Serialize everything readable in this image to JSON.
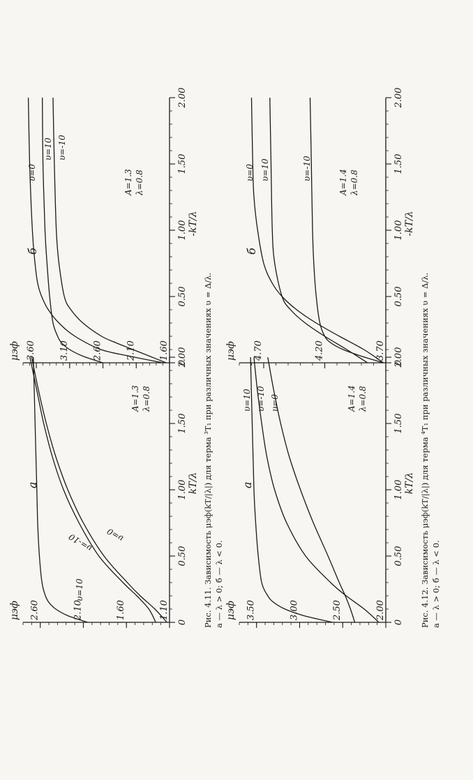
{
  "figures": [
    {
      "caption_line1": "Рис. 4.11. Зависимость μэф(kT/|λ|) для терма ³T₁ при различных значениях υ = Δ/λ.",
      "caption_line2": "а — λ > 0; б — λ < 0."
    },
    {
      "caption_line1": "Рис. 4.12. Зависимость μэф(kT/|λ|) для терма ⁴T₁ при различных значениях υ = Δ/λ.",
      "caption_line2": "а — λ > 0; б — λ < 0."
    }
  ],
  "chart_data": [
    {
      "id": "fig411a",
      "type": "line",
      "panel": "а",
      "ylabel": "μэф",
      "xlabel": "kT/λ",
      "xlim": [
        0,
        2.0
      ],
      "ylim": [
        1.1,
        2.8
      ],
      "xticks": [
        0,
        0.5,
        1.0,
        1.5,
        2.0
      ],
      "xtick_labels": [
        "0",
        "0.50",
        "1.00",
        "1.50",
        "2.00"
      ],
      "yticks": [
        1.1,
        1.6,
        2.1,
        2.6
      ],
      "ytick_labels": [
        "1.10",
        "1.60",
        "2.10",
        "2.60"
      ],
      "params": [
        "A=1.3",
        "λ=0.8"
      ],
      "series": [
        {
          "name": "υ=10",
          "x": [
            0,
            0.05,
            0.1,
            0.15,
            0.2,
            0.3,
            0.5,
            0.75,
            1.0,
            1.5,
            2.0
          ],
          "y": [
            2.05,
            2.28,
            2.42,
            2.5,
            2.54,
            2.58,
            2.61,
            2.63,
            2.64,
            2.66,
            2.68
          ]
        },
        {
          "name": "υ=-10",
          "x": [
            0,
            0.1,
            0.2,
            0.3,
            0.5,
            0.75,
            1.0,
            1.25,
            1.5,
            1.75,
            2.0
          ],
          "y": [
            1.26,
            1.34,
            1.48,
            1.64,
            1.92,
            2.15,
            2.33,
            2.46,
            2.56,
            2.64,
            2.72
          ]
        },
        {
          "name": "υ=0",
          "x": [
            0,
            0.1,
            0.2,
            0.3,
            0.5,
            0.75,
            1.0,
            1.25,
            1.5,
            1.75,
            2.0
          ],
          "y": [
            1.13,
            1.27,
            1.44,
            1.59,
            1.86,
            2.1,
            2.28,
            2.42,
            2.53,
            2.62,
            2.7
          ]
        }
      ]
    },
    {
      "id": "fig411b",
      "type": "line",
      "panel": "б",
      "ylabel": "μэф",
      "xlabel": "-kT/λ",
      "xlim": [
        0,
        2.0
      ],
      "ylim": [
        1.6,
        3.8
      ],
      "xticks": [
        0,
        0.5,
        1.0,
        1.5,
        2.0
      ],
      "xtick_labels": [
        "0",
        "0.50",
        "1.00",
        "1.50",
        "2.00"
      ],
      "yticks": [
        1.6,
        2.1,
        2.6,
        3.1,
        3.6
      ],
      "ytick_labels": [
        "1.60",
        "2.10",
        "2.60",
        "3.10",
        "3.60"
      ],
      "params": [
        "A=1.3",
        "λ=0.8"
      ],
      "series": [
        {
          "name": "υ=0",
          "x": [
            0,
            0.05,
            0.1,
            0.2,
            0.3,
            0.4,
            0.5,
            0.6,
            0.75,
            1.0,
            1.5,
            2.0
          ],
          "y": [
            1.7,
            2.2,
            2.63,
            3.02,
            3.26,
            3.42,
            3.52,
            3.58,
            3.62,
            3.66,
            3.7,
            3.72
          ]
        },
        {
          "name": "υ=10",
          "x": [
            0,
            0.05,
            0.1,
            0.15,
            0.2,
            0.3,
            0.5,
            0.75,
            1.0,
            1.5,
            2.0
          ],
          "y": [
            2.6,
            2.9,
            3.1,
            3.22,
            3.28,
            3.35,
            3.4,
            3.44,
            3.47,
            3.5,
            3.51
          ]
        },
        {
          "name": "υ=-10",
          "x": [
            0,
            0.05,
            0.1,
            0.15,
            0.2,
            0.3,
            0.4,
            0.5,
            0.75,
            1.0,
            1.5,
            2.0
          ],
          "y": [
            1.65,
            1.9,
            2.15,
            2.4,
            2.62,
            2.9,
            3.08,
            3.18,
            3.26,
            3.3,
            3.33,
            3.35
          ]
        }
      ]
    },
    {
      "id": "fig412a",
      "type": "line",
      "panel": "а",
      "ylabel": "μэф",
      "xlabel": "kT/λ",
      "xlim": [
        0,
        2.0
      ],
      "ylim": [
        2.0,
        3.7
      ],
      "xticks": [
        0,
        0.5,
        1.0,
        1.5,
        2.0
      ],
      "xtick_labels": [
        "0",
        "0.50",
        "1.00",
        "1.50",
        "2.00"
      ],
      "yticks": [
        2.0,
        2.5,
        3.0,
        3.5
      ],
      "ytick_labels": [
        "2.00",
        "2.50",
        "3.00",
        "3.50"
      ],
      "params": [
        "A=1.4",
        "λ=0.8"
      ],
      "series": [
        {
          "name": "υ=10",
          "x": [
            0,
            0.05,
            0.1,
            0.15,
            0.2,
            0.3,
            0.5,
            0.75,
            1.0,
            1.5,
            2.0
          ],
          "y": [
            2.62,
            2.95,
            3.17,
            3.3,
            3.37,
            3.44,
            3.48,
            3.51,
            3.53,
            3.55,
            3.57
          ]
        },
        {
          "name": "υ=-10",
          "x": [
            0,
            0.1,
            0.2,
            0.3,
            0.5,
            0.75,
            1.0,
            1.25,
            1.5,
            1.75,
            2.0
          ],
          "y": [
            2.08,
            2.25,
            2.46,
            2.64,
            2.93,
            3.15,
            3.29,
            3.38,
            3.44,
            3.49,
            3.53
          ]
        },
        {
          "name": "υ=0",
          "x": [
            0,
            0.1,
            0.2,
            0.3,
            0.5,
            0.75,
            1.0,
            1.25,
            1.5,
            1.75,
            2.0
          ],
          "y": [
            2.36,
            2.41,
            2.47,
            2.54,
            2.67,
            2.84,
            2.99,
            3.12,
            3.22,
            3.3,
            3.37
          ]
        }
      ]
    },
    {
      "id": "fig412b",
      "type": "line",
      "panel": "б",
      "ylabel": "μэф",
      "xlabel": "-kT/λ",
      "xlim": [
        0,
        2.0
      ],
      "ylim": [
        3.7,
        4.9
      ],
      "xticks": [
        0,
        0.5,
        1.0,
        1.5,
        2.0
      ],
      "xtick_labels": [
        "0",
        "0.50",
        "1.00",
        "1.50",
        "2.00"
      ],
      "yticks": [
        3.7,
        4.2,
        4.7
      ],
      "ytick_labels": [
        "3.70",
        "4.20",
        "4.70"
      ],
      "params": [
        "A=1.4",
        "λ=0.8"
      ],
      "series": [
        {
          "name": "υ=0",
          "x": [
            0,
            0.1,
            0.2,
            0.3,
            0.4,
            0.5,
            0.6,
            0.75,
            1.0,
            1.25,
            1.5,
            2.0
          ],
          "y": [
            3.72,
            3.88,
            4.08,
            4.27,
            4.43,
            4.55,
            4.63,
            4.7,
            4.75,
            4.78,
            4.79,
            4.8
          ]
        },
        {
          "name": "υ=10",
          "x": [
            0,
            0.1,
            0.2,
            0.3,
            0.4,
            0.5,
            0.75,
            1.0,
            1.5,
            2.0
          ],
          "y": [
            3.85,
            4.02,
            4.2,
            4.36,
            4.48,
            4.55,
            4.61,
            4.63,
            4.64,
            4.65
          ]
        },
        {
          "name": "υ=-10",
          "x": [
            0,
            0.05,
            0.1,
            0.15,
            0.2,
            0.3,
            0.5,
            0.75,
            1.0,
            1.5,
            2.0
          ],
          "y": [
            3.72,
            3.9,
            4.05,
            4.15,
            4.2,
            4.24,
            4.27,
            4.29,
            4.3,
            4.31,
            4.32
          ]
        }
      ]
    }
  ]
}
